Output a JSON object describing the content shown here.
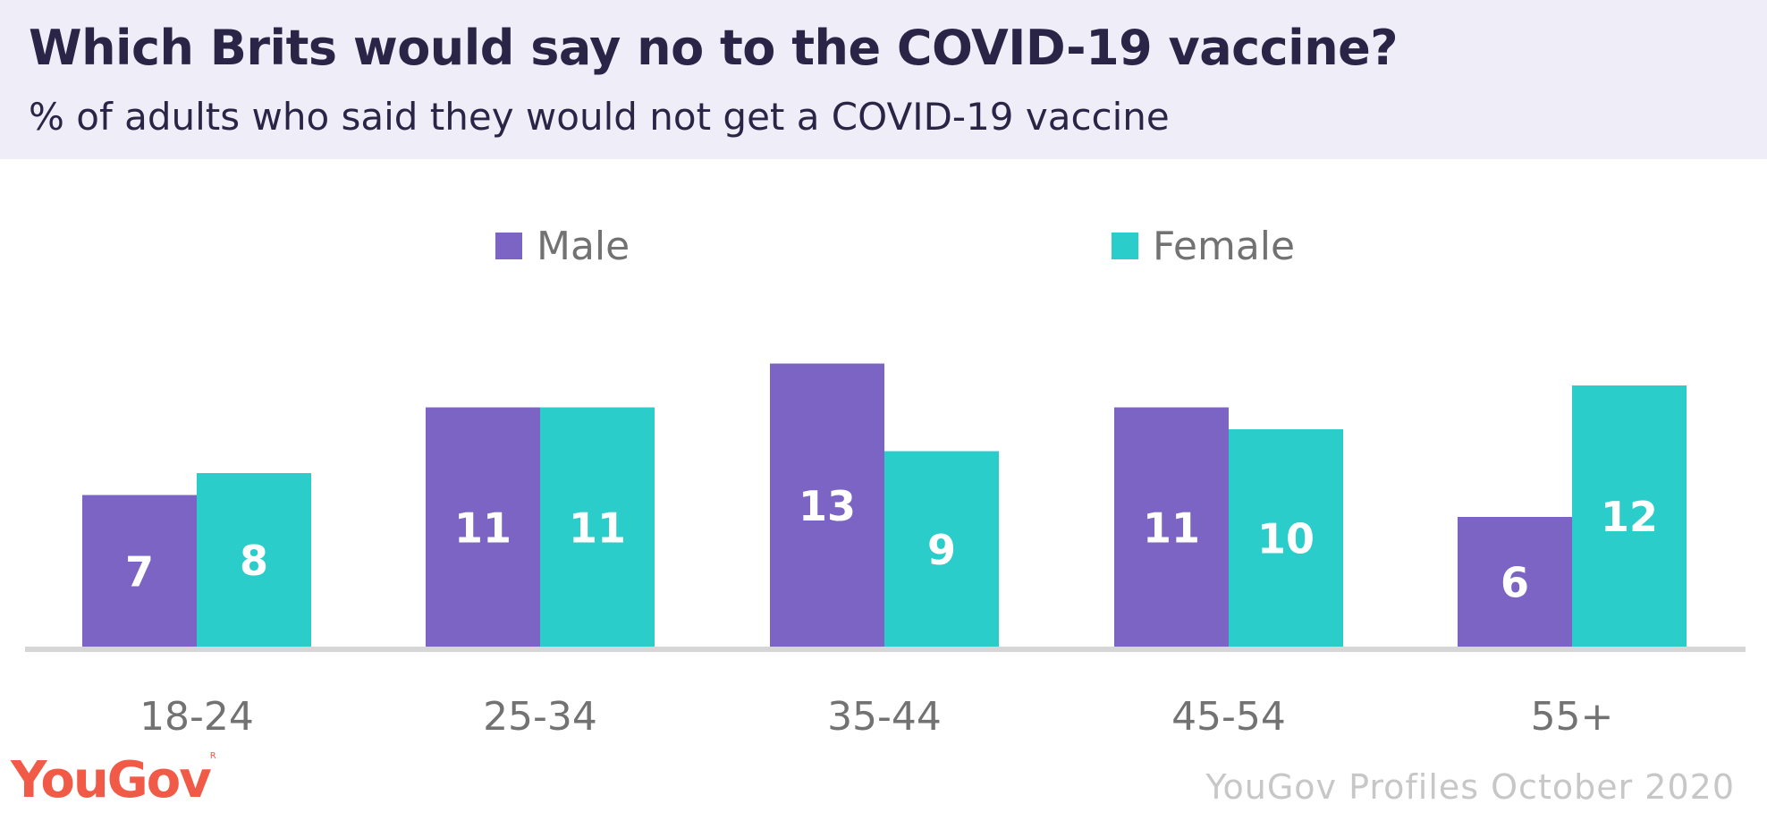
{
  "header": {
    "title": "Which Brits would say no to the COVID-19 vaccine?",
    "subtitle": "% of adults who said they would not get a COVID-19 vaccine"
  },
  "colors": {
    "male": "#7b64c4",
    "female": "#2acdca",
    "header_bg": "#efedf7",
    "logo": "#f05a46"
  },
  "chart_data": {
    "type": "bar",
    "categories": [
      "18-24",
      "25-34",
      "35-44",
      "45-54",
      "55+"
    ],
    "series": [
      {
        "name": "Male",
        "values": [
          7,
          11,
          13,
          11,
          6
        ]
      },
      {
        "name": "Female",
        "values": [
          8,
          11,
          9,
          10,
          12
        ]
      }
    ],
    "title": "Which Brits would say no to the COVID-19 vaccine?",
    "subtitle": "% of adults who said they would not get a COVID-19 vaccine",
    "legend_position": "top",
    "grid": false,
    "data_labels": true
  },
  "footer": {
    "logo_text": "YouGov",
    "source": "YouGov Profiles October 2020"
  }
}
